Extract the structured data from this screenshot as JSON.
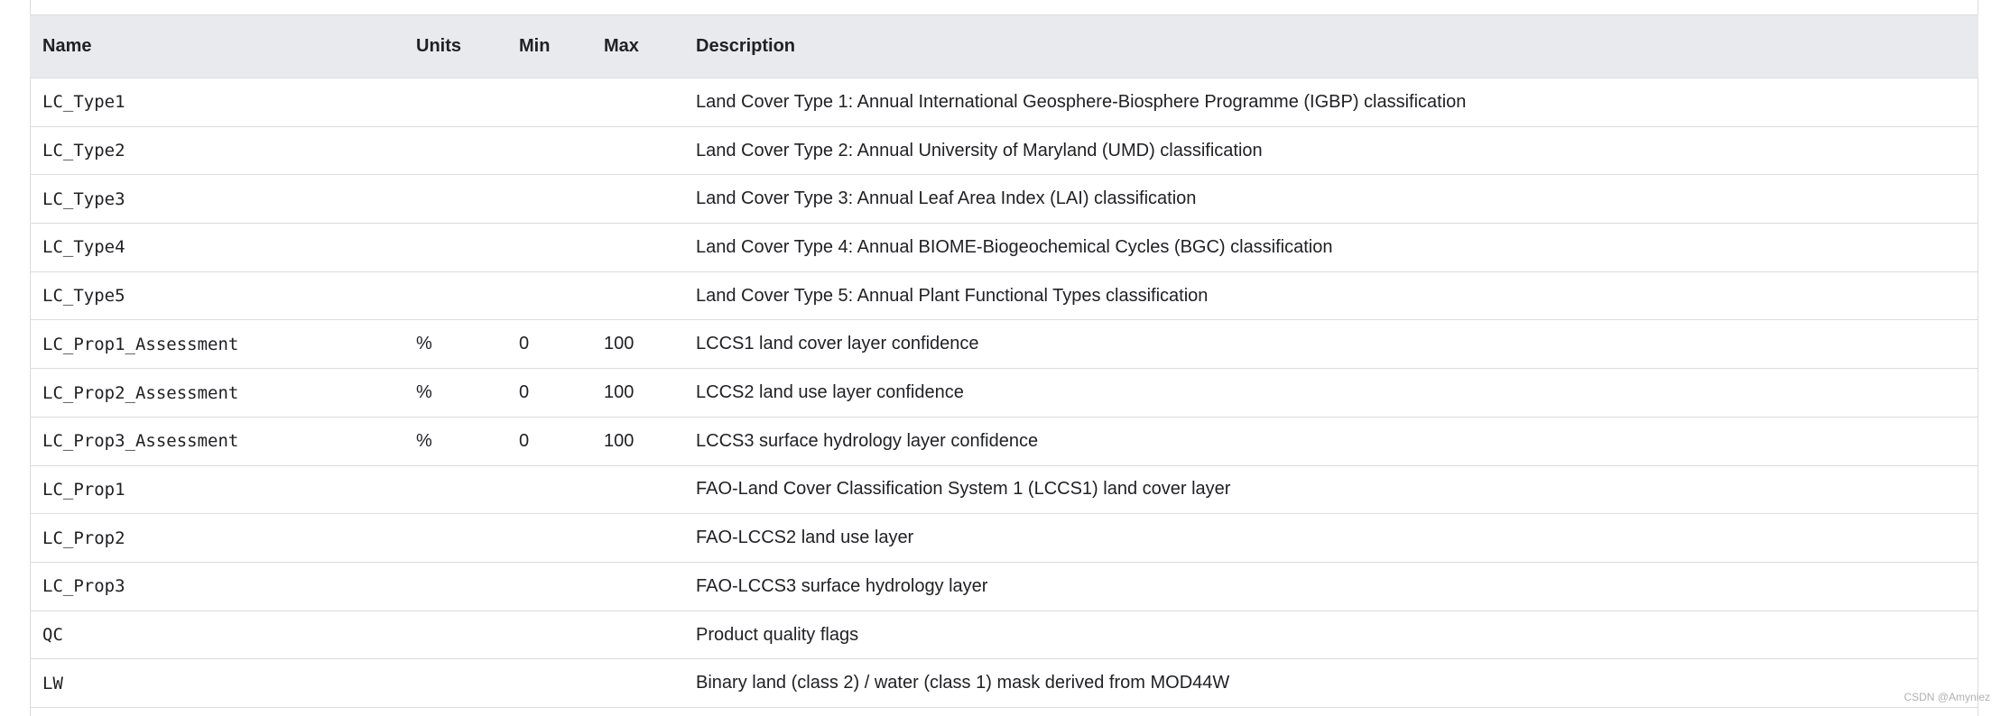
{
  "table": {
    "columns": [
      "Name",
      "Units",
      "Min",
      "Max",
      "Description"
    ],
    "rows": [
      {
        "name": "LC_Type1",
        "description": "Land Cover Type 1: Annual International Geosphere-Biosphere Programme (IGBP) classification"
      },
      {
        "name": "LC_Type2",
        "description": "Land Cover Type 2: Annual University of Maryland (UMD) classification"
      },
      {
        "name": "LC_Type3",
        "description": "Land Cover Type 3: Annual Leaf Area Index (LAI) classification"
      },
      {
        "name": "LC_Type4",
        "description": "Land Cover Type 4: Annual BIOME-Biogeochemical Cycles (BGC) classification"
      },
      {
        "name": "LC_Type5",
        "description": "Land Cover Type 5: Annual Plant Functional Types classification"
      },
      {
        "name": "LC_Prop1_Assessment",
        "units": "%",
        "min": 0,
        "max": 100,
        "description": "LCCS1 land cover layer confidence"
      },
      {
        "name": "LC_Prop2_Assessment",
        "units": "%",
        "min": 0,
        "max": 100,
        "description": "LCCS2 land use layer confidence"
      },
      {
        "name": "LC_Prop3_Assessment",
        "units": "%",
        "min": 0,
        "max": 100,
        "description": "LCCS3 surface hydrology layer confidence"
      },
      {
        "name": "LC_Prop1",
        "description": "FAO-Land Cover Classification System 1 (LCCS1) land cover layer"
      },
      {
        "name": "LC_Prop2",
        "description": "FAO-LCCS2 land use layer"
      },
      {
        "name": "LC_Prop3",
        "description": "FAO-LCCS3 surface hydrology layer"
      },
      {
        "name": "QC",
        "description": "Product quality flags"
      },
      {
        "name": "LW",
        "description": "Binary land (class 2) / water (class 1) mask derived from MOD44W"
      }
    ]
  },
  "watermark": "CSDN @Amyniez"
}
